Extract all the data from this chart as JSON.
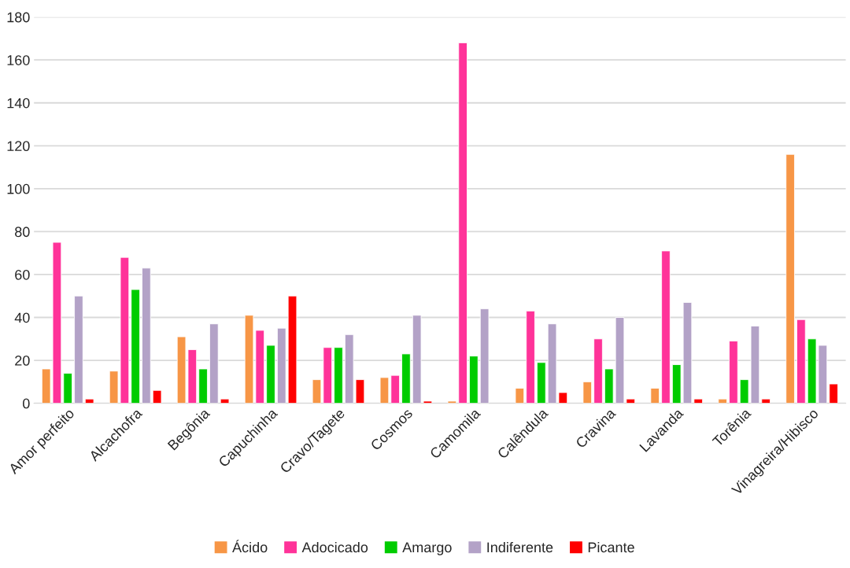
{
  "chart_data": {
    "type": "bar",
    "categories": [
      "Amor perfeito",
      "Alcachofra",
      "Begônia",
      "Capuchinha",
      "Cravo/Tagete",
      "Cosmos",
      "Camomila",
      "Calêndula",
      "Cravina",
      "Lavanda",
      "Torênia",
      "Vinagreira/Hibisco"
    ],
    "series": [
      {
        "name": "Ácido",
        "color": "#f79646",
        "values": [
          16,
          15,
          31,
          41,
          11,
          12,
          1,
          7,
          10,
          7,
          2,
          116
        ]
      },
      {
        "name": "Adocicado",
        "color": "#ff3399",
        "values": [
          75,
          68,
          25,
          34,
          26,
          13,
          168,
          43,
          30,
          71,
          29,
          39
        ]
      },
      {
        "name": "Amargo",
        "color": "#00cc00",
        "values": [
          14,
          53,
          16,
          27,
          26,
          23,
          22,
          19,
          16,
          18,
          11,
          30
        ]
      },
      {
        "name": "Indiferente",
        "color": "#b3a2c7",
        "values": [
          50,
          63,
          37,
          35,
          32,
          41,
          44,
          37,
          40,
          47,
          36,
          27
        ]
      },
      {
        "name": "Picante",
        "color": "#ff0000",
        "values": [
          2,
          6,
          2,
          50,
          11,
          1,
          null,
          5,
          2,
          2,
          2,
          9
        ]
      }
    ],
    "ylim": [
      0,
      180
    ],
    "yticks": [
      0,
      20,
      40,
      60,
      80,
      100,
      120,
      140,
      160,
      180
    ],
    "grid": "y",
    "legend": "bottom"
  }
}
